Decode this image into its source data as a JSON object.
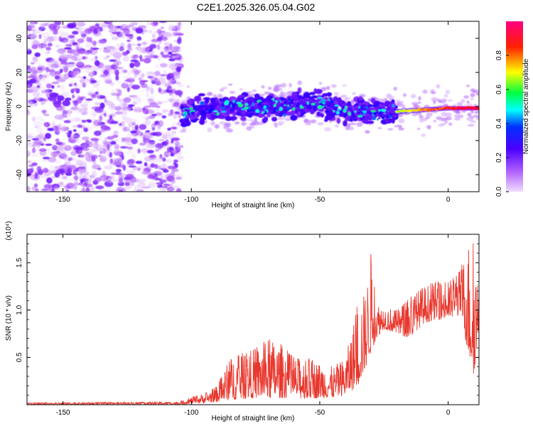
{
  "title": "C2E1.2025.326.05.04.G02",
  "chart_data": [
    {
      "type": "heatmap",
      "title": "C2E1.2025.326.05.04.G02",
      "xlabel": "Height of straight line (km)",
      "ylabel": "Frequency (Hz)",
      "xlim": [
        -164,
        12
      ],
      "ylim": [
        -50,
        50
      ],
      "xticks": [
        -150,
        -100,
        -50,
        0
      ],
      "yticks": [
        -40,
        -20,
        0,
        20,
        40
      ],
      "colorbar": {
        "label": "Normalized spectral amplitude",
        "range": [
          0,
          1
        ],
        "ticks": [
          0.0,
          0.2,
          0.4,
          0.6,
          0.8
        ],
        "tick_labels": [
          "0.0",
          "0.2",
          "0.4",
          "0.6",
          "0.8"
        ],
        "colors": [
          "#f0ddff",
          "#a040ff",
          "#4a00ff",
          "#0000ff",
          "#00ffff",
          "#00ff00",
          "#ffff00",
          "#ff0000",
          "#ff0080"
        ]
      },
      "regions": [
        {
          "x": [
            -164,
            -104
          ],
          "frequency_range": [
            -50,
            50
          ],
          "amplitude_range": [
            0.0,
            0.2
          ],
          "description": "diffuse noise"
        },
        {
          "x": [
            -104,
            -20
          ],
          "frequency_center": -2,
          "frequency_spread": 6,
          "amplitude_range": [
            0.2,
            0.6
          ]
        },
        {
          "x": [
            -20,
            12
          ],
          "frequency_center": -1,
          "frequency_spread": 2,
          "amplitude_range": [
            0.6,
            1.0
          ]
        }
      ],
      "ridge": [
        {
          "x": -100,
          "y": -3
        },
        {
          "x": -90,
          "y": -1
        },
        {
          "x": -80,
          "y": 0
        },
        {
          "x": -70,
          "y": 0
        },
        {
          "x": -60,
          "y": 1
        },
        {
          "x": -50,
          "y": 2
        },
        {
          "x": -40,
          "y": -2
        },
        {
          "x": -30,
          "y": -3
        },
        {
          "x": -20,
          "y": -3
        },
        {
          "x": -10,
          "y": -2
        },
        {
          "x": 0,
          "y": -1
        },
        {
          "x": 10,
          "y": -1
        }
      ]
    },
    {
      "type": "line",
      "xlabel": "Height of straight line (km)",
      "ylabel": "SNR (10 * v/v)",
      "y_scale_label": "(x10⁴)",
      "xlim": [
        -164,
        12
      ],
      "ylim": [
        0,
        1.8
      ],
      "xticks": [
        -150,
        -100,
        -50,
        0
      ],
      "yticks": [
        0.5,
        1.0,
        1.5
      ],
      "ytick_labels": [
        "0.5",
        "1.0",
        "1.5"
      ],
      "series": [
        {
          "name": "SNR",
          "color": "#e8372d",
          "envelope_x": [
            -164,
            -105,
            -100,
            -95,
            -90,
            -85,
            -80,
            -75,
            -70,
            -65,
            -60,
            -55,
            -50,
            -45,
            -40,
            -35,
            -32,
            -30,
            -28,
            -25,
            -20,
            -15,
            -10,
            -5,
            0,
            5,
            8,
            10,
            12
          ],
          "envelope_low": [
            0.0,
            0.0,
            0.01,
            0.02,
            0.03,
            0.05,
            0.06,
            0.07,
            0.06,
            0.07,
            0.07,
            0.06,
            0.07,
            0.07,
            0.1,
            0.2,
            0.4,
            0.55,
            0.7,
            0.8,
            0.75,
            0.7,
            0.85,
            0.9,
            0.9,
            0.95,
            0.5,
            0.3,
            0.8
          ],
          "envelope_high": [
            0.02,
            0.03,
            0.08,
            0.12,
            0.2,
            0.5,
            0.55,
            0.6,
            0.7,
            0.65,
            0.5,
            0.5,
            0.45,
            0.4,
            0.5,
            1.1,
            1.2,
            1.65,
            1.1,
            1.05,
            1.0,
            1.15,
            1.25,
            1.3,
            1.3,
            1.45,
            1.75,
            1.75,
            1.1
          ]
        }
      ]
    }
  ]
}
